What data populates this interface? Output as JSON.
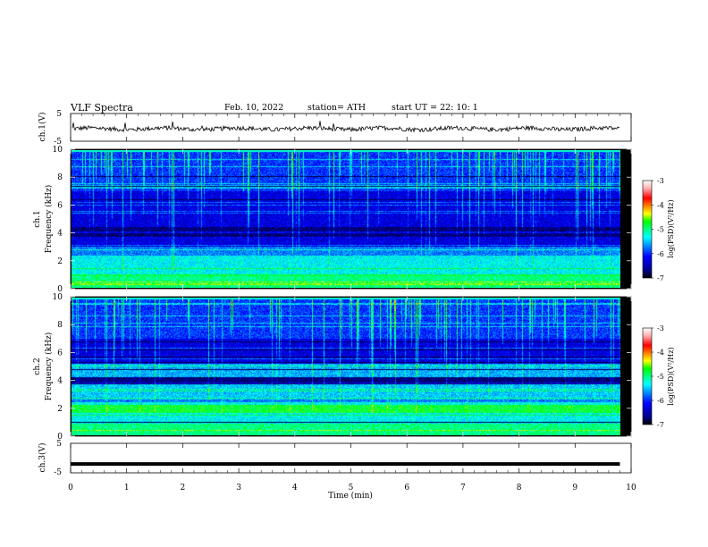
{
  "header": {
    "title": "VLF  Spectra",
    "date": "Feb. 10, 2022",
    "station": "station= ATH",
    "start": "start  UT  =    22: 10: 1"
  },
  "chart_data": [
    {
      "type": "line",
      "panel": "ch1-waveform",
      "ylabel": "ch.1(V)",
      "yticks": [
        "5",
        "-5"
      ],
      "ylim": [
        -5,
        5
      ],
      "xlim": [
        0,
        10
      ],
      "mean_level_v": -0.5,
      "data_end_min": 9.8
    },
    {
      "type": "heatmap",
      "panel": "ch1-spectrogram",
      "ylabel_parts": [
        "ch.1",
        "Frequency  (kHz)"
      ],
      "yticks": [
        "0",
        "2",
        "4",
        "6",
        "8",
        "10"
      ],
      "ylim": [
        0,
        10
      ],
      "xlim": [
        0,
        10
      ],
      "data_end_min": 9.8,
      "colorbar": {
        "label": "log(PSD)(V²/Hz)",
        "ticks": [
          "-3",
          "-4",
          "-5",
          "-6",
          "-7"
        ],
        "range": [
          -7,
          -3
        ]
      },
      "colors": [
        "#000000",
        "#00008a",
        "#0000ff",
        "#0080ff",
        "#00ffff",
        "#00ff80",
        "#00ff00",
        "#ffff00",
        "#ff8000",
        "#ff0000",
        "#ffb0b0",
        "#ffffff"
      ]
    },
    {
      "type": "heatmap",
      "panel": "ch2-spectrogram",
      "ylabel_parts": [
        "ch.2",
        "Frequency  (kHz)"
      ],
      "yticks": [
        "0",
        "2",
        "4",
        "6",
        "8",
        "10"
      ],
      "ylim": [
        0,
        10
      ],
      "xlim": [
        0,
        10
      ],
      "data_end_min": 9.8,
      "colorbar": {
        "label": "log(PSD)(V²/Hz)",
        "ticks": [
          "-3",
          "-4",
          "-5",
          "-6",
          "-7"
        ],
        "range": [
          -7,
          -3
        ]
      }
    },
    {
      "type": "line",
      "panel": "ch3-waveform",
      "ylabel": "ch.3(V)",
      "yticks": [
        "5",
        "-5"
      ],
      "ylim": [
        -5,
        5
      ],
      "xlim": [
        0,
        10
      ],
      "level_v": -2.0,
      "data_end_min": 9.8
    }
  ],
  "xaxis": {
    "label": "Time  (min)",
    "ticks": [
      "0",
      "1",
      "2",
      "3",
      "4",
      "5",
      "6",
      "7",
      "8",
      "9",
      "10"
    ]
  }
}
